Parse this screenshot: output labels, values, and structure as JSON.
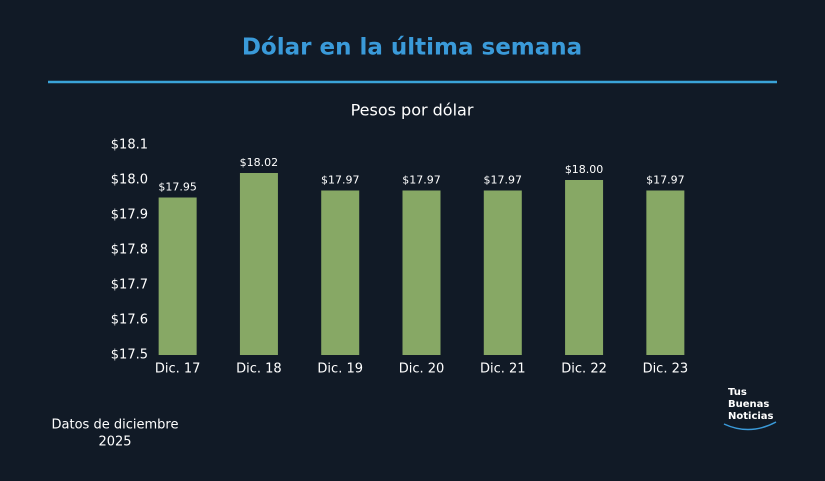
{
  "chart_data": {
    "type": "bar",
    "title": "Dólar en la última semana",
    "subtitle": "Pesos por dólar",
    "categories": [
      "Dic. 17",
      "Dic. 18",
      "Dic. 19",
      "Dic. 20",
      "Dic. 21",
      "Dic. 22",
      "Dic. 23"
    ],
    "values": [
      17.95,
      18.02,
      17.97,
      17.97,
      17.97,
      18.0,
      17.97
    ],
    "value_labels": [
      "$17.95",
      "$18.02",
      "$17.97",
      "$17.97",
      "$17.97",
      "$18.00",
      "$17.97"
    ],
    "color": "#87a865",
    "ylim": [
      17.5,
      18.1
    ],
    "yticks": [
      {
        "value": 17.5,
        "label": "$17.5"
      },
      {
        "value": 17.6,
        "label": "$17.6"
      },
      {
        "value": 17.7,
        "label": "$17.7"
      },
      {
        "value": 17.8,
        "label": "$17.8"
      },
      {
        "value": 17.9,
        "label": "$17.9"
      },
      {
        "value": 18.0,
        "label": "$18.0"
      },
      {
        "value": 18.1,
        "label": "$18.1"
      }
    ],
    "grid": false
  },
  "footer": {
    "note": [
      "Datos de diciembre",
      "2025"
    ],
    "logo": [
      "Tus",
      "Buenas",
      "Noticias"
    ]
  }
}
